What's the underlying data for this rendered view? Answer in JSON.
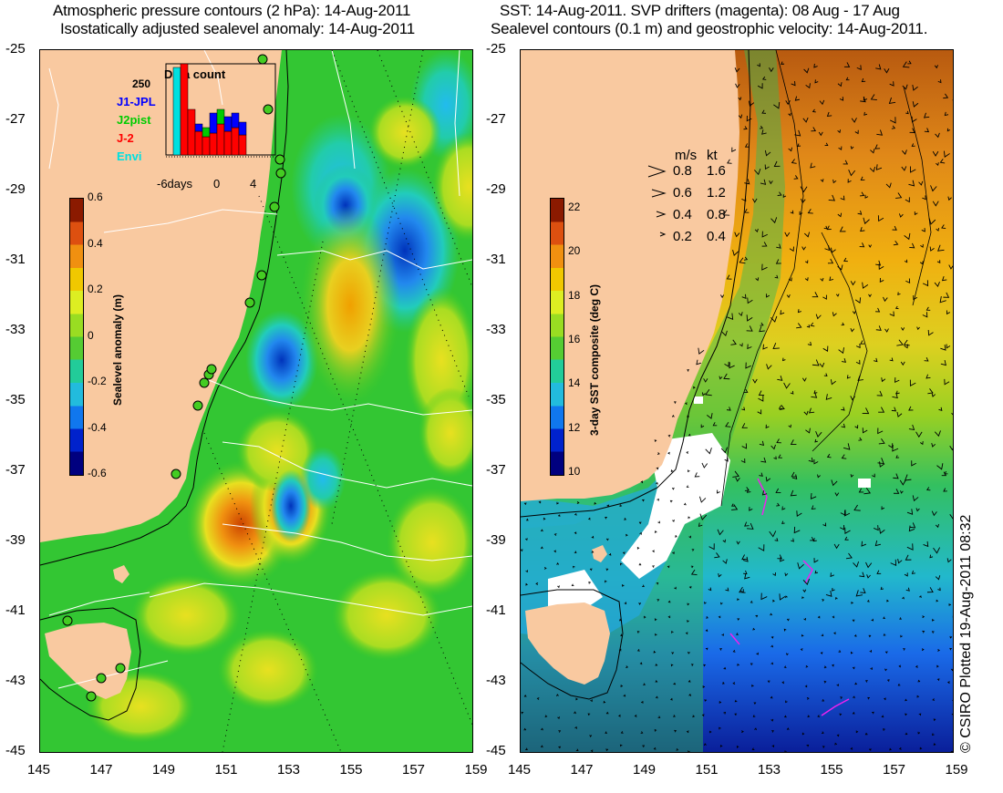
{
  "left_panel": {
    "title_line1": "Atmospheric pressure contours (2 hPa): 14-Aug-2011",
    "title_line2": "Isostatically adjusted sealevel anomaly: 14-Aug-2011",
    "colorbar": {
      "label": "Sealevel anomaly (m)",
      "ticks": [
        "0.6",
        "0.4",
        "0.2",
        "0",
        "-0.2",
        "-0.4",
        "-0.6"
      ],
      "colors": [
        "#00007f",
        "#0022cc",
        "#1077ee",
        "#22bbdd",
        "#22cc99",
        "#55cc33",
        "#99dd22",
        "#ddee22",
        "#f0c800",
        "#f09010",
        "#dd5010",
        "#8b1a00"
      ]
    },
    "data_count": {
      "title": "Data count",
      "ymax_label": "250",
      "series": [
        {
          "name": "J1-JPL",
          "color": "#0000ff"
        },
        {
          "name": "J2pist",
          "color": "#00cc00"
        },
        {
          "name": "J-2",
          "color": "#ff0000"
        },
        {
          "name": "Envi",
          "color": "#00e0e0"
        }
      ],
      "x_ticks": [
        "-6days",
        "0",
        "4"
      ]
    }
  },
  "right_panel": {
    "title_line1": "SST: 14-Aug-2011. SVP drifters (magenta): 08 Aug - 17 Aug",
    "title_line2": "Sealevel contours (0.1 m) and geostrophic velocity: 14-Aug-2011.",
    "colorbar": {
      "label": "3-day SST composite (deg C)",
      "ticks": [
        "22",
        "20",
        "18",
        "16",
        "14",
        "12",
        "10"
      ],
      "colors": [
        "#00007f",
        "#0022cc",
        "#1077ee",
        "#22bbdd",
        "#22cc99",
        "#55cc33",
        "#99dd22",
        "#ddee22",
        "#f0c800",
        "#f09010",
        "#dd5010",
        "#8b1a00"
      ]
    },
    "velocity_legend": {
      "header_ms": "m/s",
      "header_kt": "kt",
      "rows": [
        {
          "ms": "0.8",
          "kt": "1.6"
        },
        {
          "ms": "0.6",
          "kt": "1.2"
        },
        {
          "ms": "0.4",
          "kt": "0.8"
        },
        {
          "ms": "0.2",
          "kt": "0.4"
        }
      ]
    }
  },
  "y_axis_labels": [
    "-25",
    "-27",
    "-29",
    "-31",
    "-33",
    "-35",
    "-37",
    "-39",
    "-41",
    "-43",
    "-45"
  ],
  "x_axis_labels": [
    "145",
    "147",
    "149",
    "151",
    "153",
    "155",
    "157",
    "159"
  ],
  "credit": "© CSIRO Plotted 19-Aug-2011 08:32",
  "colors": {
    "land": "#f9c9a0",
    "ocean_green": "#33cc33"
  }
}
